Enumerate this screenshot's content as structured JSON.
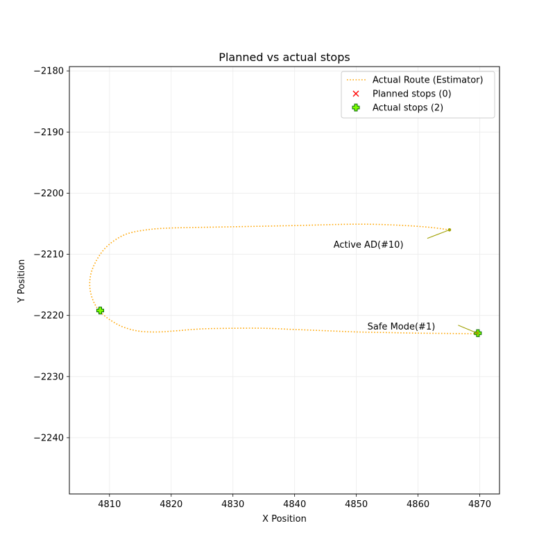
{
  "chart_data": {
    "type": "line",
    "title": "Planned vs actual stops",
    "xlabel": "X Position",
    "ylabel": "Y Position",
    "xlim": [
      4803.5,
      4873.2
    ],
    "ylim": [
      -2249.2,
      -2179.3
    ],
    "xticks": [
      4810,
      4820,
      4830,
      4840,
      4850,
      4860,
      4870
    ],
    "yticks": [
      -2180,
      -2190,
      -2200,
      -2210,
      -2220,
      -2230,
      -2240
    ],
    "grid": true,
    "legend_position": "top-right",
    "colors": {
      "route": "#ffa500",
      "planned": "#ff0000",
      "actual_fill": "#7fff00",
      "actual_edge": "#006400",
      "annotation": "#a0a000"
    },
    "series": [
      {
        "name": "Actual Route (Estimator)",
        "kind": "line",
        "style": "dotted",
        "points": [
          [
            4865.1,
            -2206.0
          ],
          [
            4862.0,
            -2205.6
          ],
          [
            4858.0,
            -2205.3
          ],
          [
            4853.0,
            -2205.1
          ],
          [
            4848.0,
            -2205.1
          ],
          [
            4840.0,
            -2205.3
          ],
          [
            4830.0,
            -2205.5
          ],
          [
            4820.0,
            -2205.7
          ],
          [
            4816.0,
            -2206.0
          ],
          [
            4813.0,
            -2206.6
          ],
          [
            4811.0,
            -2207.6
          ],
          [
            4809.3,
            -2209.0
          ],
          [
            4808.0,
            -2210.8
          ],
          [
            4807.1,
            -2212.8
          ],
          [
            4806.8,
            -2214.7
          ],
          [
            4807.0,
            -2216.5
          ],
          [
            4807.7,
            -2218.3
          ],
          [
            4808.8,
            -2219.7
          ],
          [
            4810.5,
            -2221.0
          ],
          [
            4812.5,
            -2222.0
          ],
          [
            4815.0,
            -2222.6
          ],
          [
            4818.0,
            -2222.7
          ],
          [
            4821.0,
            -2222.5
          ],
          [
            4825.0,
            -2222.2
          ],
          [
            4830.0,
            -2222.1
          ],
          [
            4835.0,
            -2222.1
          ],
          [
            4840.0,
            -2222.3
          ],
          [
            4845.0,
            -2222.5
          ],
          [
            4850.0,
            -2222.7
          ],
          [
            4855.0,
            -2222.8
          ],
          [
            4860.0,
            -2222.9
          ],
          [
            4865.0,
            -2222.95
          ],
          [
            4869.7,
            -2223.0
          ]
        ]
      },
      {
        "name": "Planned stops (0)",
        "kind": "scatter",
        "marker": "x",
        "points": []
      },
      {
        "name": "Actual stops (2)",
        "kind": "scatter",
        "marker": "plus",
        "points": [
          [
            4808.5,
            -2219.2
          ],
          [
            4869.7,
            -2222.9
          ]
        ]
      }
    ],
    "annotations": [
      {
        "text": "Active AD(#10)",
        "point": [
          4865.1,
          -2206.0
        ],
        "text_at": [
          4846.3,
          -2208.4
        ],
        "arrow_from": [
          4861.5,
          -2207.4
        ]
      },
      {
        "text": "Safe Mode(#1)",
        "point": [
          4869.6,
          -2222.9
        ],
        "text_at": [
          4851.8,
          -2221.8
        ],
        "arrow_from": [
          4866.5,
          -2221.6
        ]
      }
    ]
  }
}
